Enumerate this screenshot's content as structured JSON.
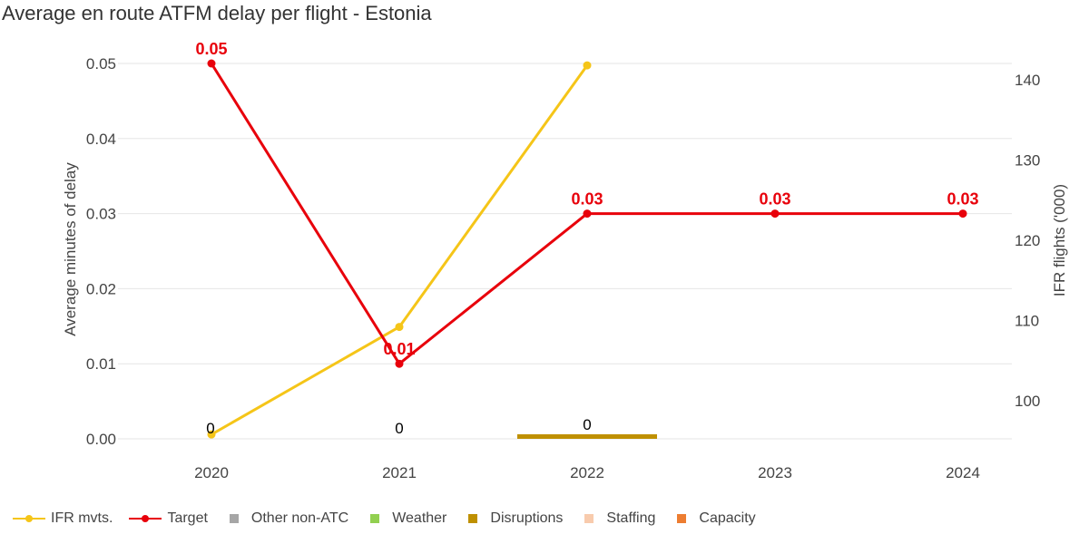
{
  "title": "Average en route ATFM delay per flight - Estonia",
  "chart_data": {
    "type": "line",
    "categories": [
      "2020",
      "2021",
      "2022",
      "2023",
      "2024"
    ],
    "y_left": {
      "label": "Average minutes of delay",
      "range": [
        0,
        0.05
      ],
      "ticks": [
        "0.00",
        "0.01",
        "0.02",
        "0.03",
        "0.04",
        "0.05"
      ]
    },
    "y_right": {
      "label": "IFR flights ('000)",
      "range": [
        95.3,
        143.5
      ],
      "ticks": [
        "100",
        "110",
        "120",
        "130",
        "140"
      ]
    },
    "grid": true,
    "legend_position": "bottom-left",
    "series": [
      {
        "name": "IFR mvts.",
        "type": "line",
        "axis": "right",
        "color": "#F5C518",
        "values": [
          95.8,
          109.2,
          141.8,
          null,
          null
        ]
      },
      {
        "name": "Target",
        "type": "line",
        "axis": "left",
        "color": "#E8000B",
        "values": [
          0.05,
          0.01,
          0.03,
          0.03,
          0.03
        ],
        "labels": [
          "0.05",
          "0.01",
          "0.03",
          "0.03",
          "0.03"
        ]
      },
      {
        "name": "Other non-ATC",
        "type": "bar",
        "color": "#A6A6A6",
        "values": [
          0,
          0,
          0,
          null,
          null
        ]
      },
      {
        "name": "Weather",
        "type": "bar",
        "color": "#92D050",
        "values": [
          0,
          0,
          0,
          null,
          null
        ]
      },
      {
        "name": "Disruptions",
        "type": "bar",
        "color": "#BF9000",
        "values": [
          0,
          0,
          0,
          null,
          null
        ]
      },
      {
        "name": "Staffing",
        "type": "bar",
        "color": "#F8CBAD",
        "values": [
          0,
          0,
          0,
          null,
          null
        ]
      },
      {
        "name": "Capacity",
        "type": "bar",
        "color": "#ED7D31",
        "values": [
          0,
          0,
          0,
          null,
          null
        ]
      }
    ],
    "total_labels": [
      "0",
      "0",
      "0",
      null,
      null
    ]
  }
}
